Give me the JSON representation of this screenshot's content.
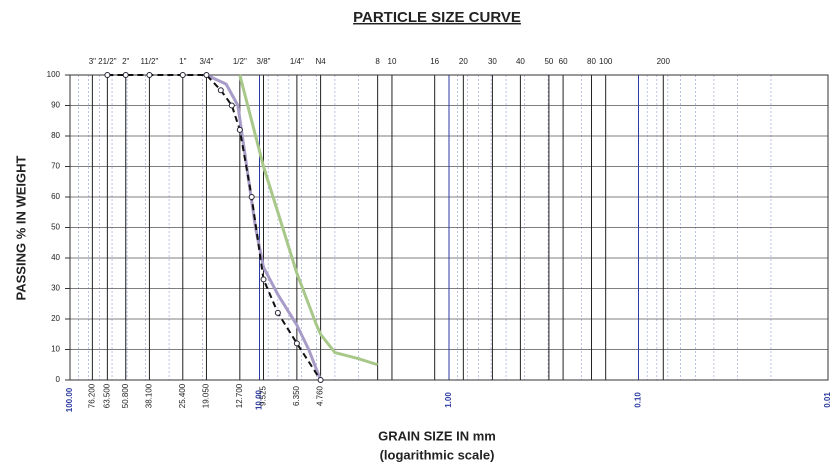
{
  "chart_data": {
    "type": "line",
    "title": "PARTICLE SIZE CURVE",
    "x_label": "GRAIN SIZE IN mm",
    "x_sublabel": "(logarithmic scale)",
    "y_label": "PASSING % IN WEIGHT",
    "log_x": true,
    "grid": true,
    "xlim": [
      100,
      0.01
    ],
    "ylim": [
      0,
      100
    ],
    "yticks": [
      0,
      10,
      20,
      30,
      40,
      50,
      60,
      70,
      80,
      90,
      100
    ],
    "xticks": [
      {
        "value": 100,
        "label": "100.00"
      },
      {
        "value": 10,
        "label": "10.00"
      },
      {
        "value": 1,
        "label": "1.00"
      },
      {
        "value": 0.1,
        "label": "0.10"
      },
      {
        "value": 0.01,
        "label": "0.01"
      }
    ],
    "sieves": [
      {
        "name": "3\"",
        "size": {
          "value": 76.2,
          "label": "76.200"
        }
      },
      {
        "name": "21/2\"",
        "size": {
          "value": 63.5,
          "label": "63.500"
        }
      },
      {
        "name": "2\"",
        "size": {
          "value": 50.8,
          "label": "50.800"
        }
      },
      {
        "name": "11/2\"",
        "size": {
          "value": 38.1,
          "label": "38.100"
        }
      },
      {
        "name": "1\"",
        "size": {
          "value": 25.4,
          "label": "25.400"
        }
      },
      {
        "name": "3/4\"",
        "size": {
          "value": 19.05,
          "label": "19.050"
        }
      },
      {
        "name": "1/2\"",
        "size": {
          "value": 12.7,
          "label": "12.700"
        }
      },
      {
        "name": "3/8\"",
        "size": {
          "value": 9.525,
          "label": "9.525"
        }
      },
      {
        "name": "1/4\"",
        "size": {
          "value": 6.35,
          "label": "6.350"
        }
      },
      {
        "name": "N4",
        "size": {
          "value": 4.76,
          "label": "4.760"
        }
      },
      {
        "name": "8",
        "size": 2.38
      },
      {
        "name": "10",
        "size": 2.0
      },
      {
        "name": "16",
        "size": 1.19
      },
      {
        "name": "20",
        "size": 0.84
      },
      {
        "name": "30",
        "size": 0.59
      },
      {
        "name": "40",
        "size": 0.42
      },
      {
        "name": "50",
        "size": 0.297
      },
      {
        "name": "60",
        "size": 0.25
      },
      {
        "name": "80",
        "size": 0.177
      },
      {
        "name": "100",
        "size": 0.149
      },
      {
        "name": "200",
        "size": 0.074
      }
    ],
    "series": [
      {
        "color": "#a8c88a",
        "width": 3,
        "dashed": false,
        "markers": false,
        "x": [
          12.7,
          11,
          9.525,
          8,
          6.35,
          5,
          4.76,
          4,
          3,
          2.38
        ],
        "values": [
          100,
          85,
          70,
          55,
          35,
          18,
          15,
          9,
          7,
          5
        ]
      },
      {
        "color": "#a89cc8",
        "width": 3,
        "dashed": false,
        "markers": false,
        "x": [
          19.05,
          15,
          13,
          12,
          10.5,
          9.525,
          8,
          6.35,
          5.5,
          4.76
        ],
        "values": [
          100,
          97,
          90,
          75,
          50,
          37,
          28,
          18,
          10,
          0
        ]
      },
      {
        "color": "#111111",
        "width": 2,
        "dashed": true,
        "markers": true,
        "x": [
          63.5,
          50.8,
          38.1,
          25.4,
          19.05,
          16,
          14,
          12.7,
          11,
          9.525,
          8,
          6.35,
          4.76
        ],
        "values": [
          100,
          100,
          100,
          100,
          100,
          95,
          90,
          82,
          60,
          33,
          22,
          12,
          0
        ]
      }
    ]
  }
}
